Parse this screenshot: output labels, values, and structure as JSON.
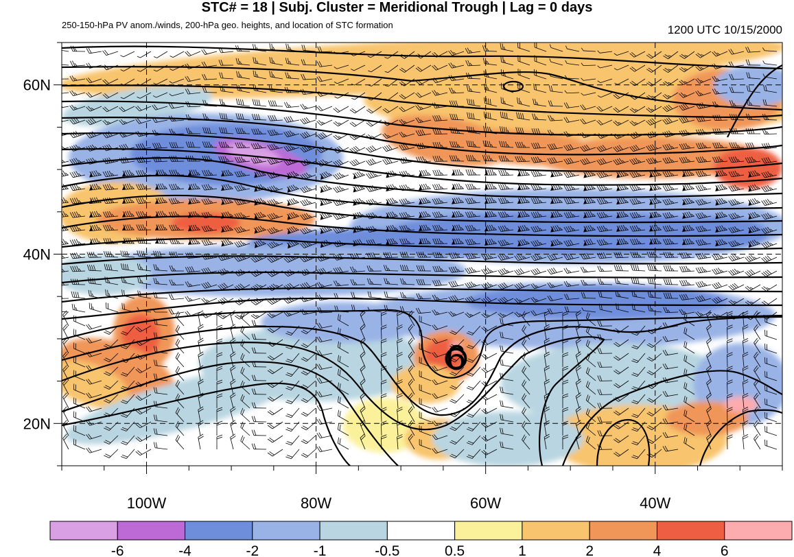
{
  "title": "STC# = 18 | Subj. Cluster = Meridional Trough | Lag = 0 days",
  "subtitle": "250-150-hPa PV anom./winds, 200-hPa geo. heights, and location of STC formation",
  "time_stamp": "1200 UTC  10/15/2000",
  "lat_labels": [
    {
      "label": "60N",
      "lat": 60
    },
    {
      "label": "40N",
      "lat": 40
    },
    {
      "label": "20N",
      "lat": 20
    }
  ],
  "lon_labels": [
    {
      "label": "100W",
      "lon": -100
    },
    {
      "label": "80W",
      "lon": -80
    },
    {
      "label": "60W",
      "lon": -60
    },
    {
      "label": "40W",
      "lon": -40
    }
  ],
  "map_extent": {
    "lon_min": -110,
    "lon_max": -25,
    "lat_min": 15,
    "lat_max": 65
  },
  "colorbar": {
    "colors": [
      "#d9a1e4",
      "#bd6ad6",
      "#6e8ddb",
      "#9ab3e6",
      "#b8d5e1",
      "#ffffff",
      "#fbf19b",
      "#f8c46d",
      "#f09658",
      "#ee5e42",
      "#fcacaf"
    ],
    "labels": [
      "-6",
      "-4",
      "-2",
      "-1",
      "-0.5",
      "0.5",
      "1",
      "2",
      "4",
      "6"
    ]
  },
  "storm_marker": {
    "symbol": "6",
    "lon": -63.5,
    "lat": 27.5
  }
}
